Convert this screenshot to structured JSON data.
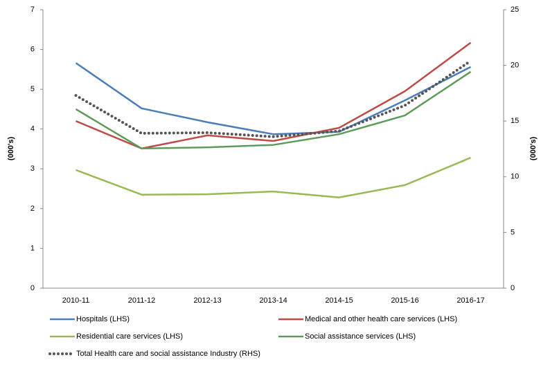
{
  "chart_data": {
    "type": "line",
    "categories": [
      "2010-11",
      "2011-12",
      "2012-13",
      "2013-14",
      "2014-15",
      "2015-16",
      "2016-17"
    ],
    "y_label": "(000's)",
    "y2_label": "(000's)",
    "ylim": [
      0,
      7
    ],
    "yticks": [
      0,
      1,
      2,
      3,
      4,
      5,
      6,
      7
    ],
    "y2lim": [
      0,
      25
    ],
    "y2ticks": [
      0,
      5,
      10,
      15,
      20,
      25
    ],
    "grid": false,
    "series": [
      {
        "name": "Hospitals (LHS)",
        "color": "#4a7ebb",
        "dash": "solid",
        "values": [
          5.66,
          4.52,
          4.17,
          3.87,
          3.93,
          4.72,
          5.56
        ]
      },
      {
        "name": "Medical and other health care services (LHS)",
        "color": "#be4b48",
        "dash": "solid",
        "values": [
          4.2,
          3.51,
          3.84,
          3.7,
          4.03,
          4.95,
          6.17
        ]
      },
      {
        "name": "Residential care services (LHS)",
        "color": "#98b954",
        "dash": "solid",
        "values": [
          2.97,
          2.35,
          2.36,
          2.43,
          2.28,
          2.59,
          3.28
        ]
      },
      {
        "name": "Social assistance services (LHS)",
        "color": "#5d9b58",
        "dash": "solid",
        "values": [
          4.5,
          3.51,
          3.54,
          3.6,
          3.87,
          4.34,
          5.44
        ]
      },
      {
        "name": "Total Health care and social assistance Industry (RHS)",
        "color": "#555555",
        "dash": "dotted",
        "axis": "y2",
        "values": [
          17.3,
          13.9,
          13.96,
          13.6,
          14.1,
          16.4,
          20.4
        ]
      }
    ]
  }
}
